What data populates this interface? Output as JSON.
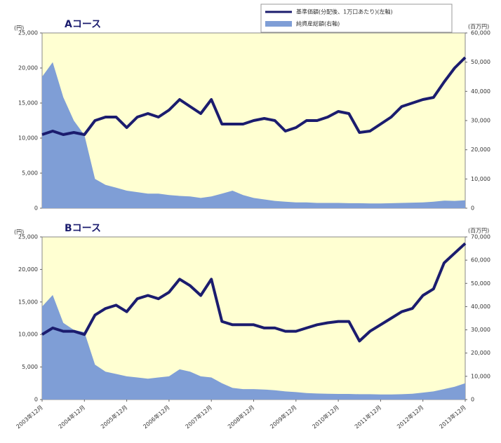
{
  "chart_data": [
    {
      "type": "line",
      "title": "Aコース",
      "y_label": "(円)",
      "y2_label": "(百万円)",
      "ylim": [
        0,
        25000
      ],
      "yticks": [
        0,
        {
          "value": 5000,
          "label": "5,000"
        },
        {
          "value": 10000,
          "label": "10,000"
        },
        {
          "value": 15000,
          "label": "15,000"
        },
        {
          "value": 20000,
          "label": "20,000"
        },
        {
          "value": 25000,
          "label": "25,000"
        }
      ],
      "y2lim": [
        0,
        60000
      ],
      "y2ticks": [
        0,
        {
          "value": 10000,
          "label": "10,000"
        },
        {
          "value": 20000,
          "label": "20,000"
        },
        {
          "value": 30000,
          "label": "30,000"
        },
        {
          "value": 40000,
          "label": "40,000"
        },
        {
          "value": 50000,
          "label": "50,000"
        },
        {
          "value": 60000,
          "label": "60,000"
        }
      ],
      "series": [
        {
          "name": "純資産総額(右軸)",
          "kind": "area",
          "axis": "y2",
          "color": "#7f9ed6",
          "values": [
            45000,
            50000,
            38000,
            30000,
            25000,
            10000,
            8000,
            7000,
            6000,
            5500,
            5000,
            5000,
            4500,
            4200,
            4000,
            3500,
            4000,
            5000,
            6000,
            4500,
            3500,
            3000,
            2500,
            2200,
            2000,
            2000,
            1800,
            1800,
            1800,
            1700,
            1700,
            1600,
            1600,
            1700,
            1800,
            1900,
            2000,
            2200,
            2600,
            2500,
            2700
          ]
        },
        {
          "name": "基準価額(分配後、1万口あたり)(左軸)",
          "kind": "line",
          "color": "#1b1c6e",
          "values": [
            10500,
            11000,
            10500,
            10800,
            10500,
            12500,
            13000,
            13000,
            11500,
            13000,
            13500,
            13000,
            14000,
            15500,
            14500,
            13500,
            15500,
            12000,
            12000,
            12000,
            12500,
            12800,
            12500,
            11000,
            11500,
            12500,
            12500,
            13000,
            13800,
            13500,
            10800,
            11000,
            12000,
            13000,
            14500,
            15000,
            15500,
            15800,
            18000,
            20000,
            21500
          ]
        }
      ]
    },
    {
      "type": "line",
      "title": "Bコース",
      "y_label": "(円)",
      "y2_label": "(百万円)",
      "categories": [
        "2003年12月",
        null,
        null,
        null,
        "2004年12月",
        null,
        null,
        null,
        "2005年12月",
        null,
        null,
        null,
        "2006年12月",
        null,
        null,
        null,
        "2007年12月",
        null,
        null,
        null,
        "2008年12月",
        null,
        null,
        null,
        "2009年12月",
        null,
        null,
        null,
        "2010年12月",
        null,
        null,
        null,
        "2011年12月",
        null,
        null,
        null,
        "2012年12月",
        null,
        null,
        null,
        "2013年12月"
      ],
      "ylim": [
        0,
        25000
      ],
      "yticks": [
        0,
        {
          "value": 5000,
          "label": "5,000"
        },
        {
          "value": 10000,
          "label": "10,000"
        },
        {
          "value": 15000,
          "label": "15,000"
        },
        {
          "value": 20000,
          "label": "20,000"
        },
        {
          "value": 25000,
          "label": "25,000"
        }
      ],
      "y2lim": [
        0,
        70000
      ],
      "y2ticks": [
        0,
        {
          "value": 10000,
          "label": "10,000"
        },
        {
          "value": 20000,
          "label": "20,000"
        },
        {
          "value": 30000,
          "label": "30,000"
        },
        {
          "value": 40000,
          "label": "40,000"
        },
        {
          "value": 50000,
          "label": "50,000"
        },
        {
          "value": 60000,
          "label": "60,000"
        },
        {
          "value": 70000,
          "label": "70,000"
        }
      ],
      "series": [
        {
          "kind": "area",
          "axis": "y2",
          "color": "#7f9ed6",
          "values": [
            40000,
            45000,
            33000,
            30000,
            29000,
            15000,
            12000,
            11000,
            10000,
            9500,
            9000,
            9500,
            10000,
            13000,
            12000,
            10000,
            9500,
            7000,
            5000,
            4500,
            4500,
            4300,
            4000,
            3500,
            3200,
            2800,
            2600,
            2500,
            2400,
            2400,
            2300,
            2300,
            2200,
            2200,
            2300,
            2500,
            3000,
            3500,
            4500,
            5500,
            7000
          ]
        },
        {
          "kind": "line",
          "color": "#1b1c6e",
          "values": [
            10000,
            11000,
            10500,
            10500,
            10000,
            13000,
            14000,
            14500,
            13500,
            15500,
            16000,
            15500,
            16500,
            18500,
            17500,
            16000,
            18500,
            12000,
            11500,
            11500,
            11500,
            11000,
            11000,
            10500,
            10500,
            11000,
            11500,
            11800,
            12000,
            12000,
            9000,
            10500,
            11500,
            12500,
            13500,
            14000,
            16000,
            17000,
            21000,
            22500,
            24000
          ]
        }
      ]
    }
  ]
}
